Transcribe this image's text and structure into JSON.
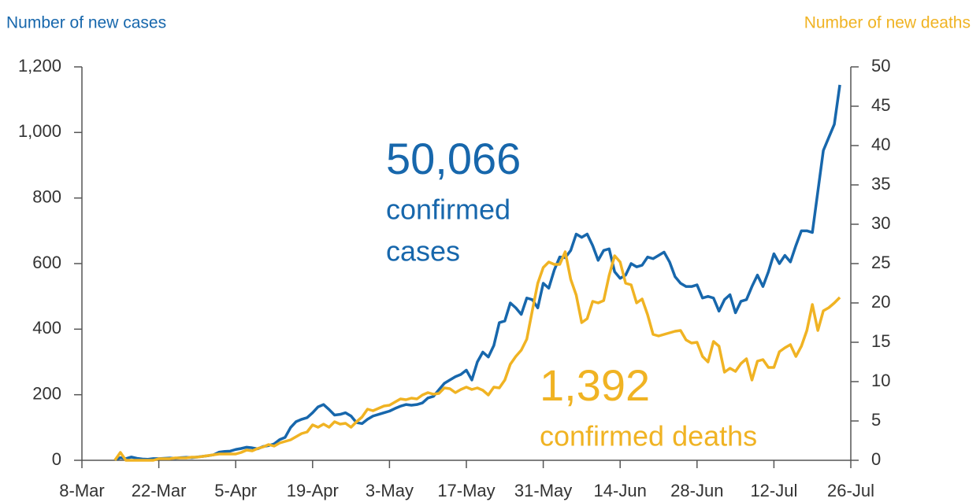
{
  "chart_data": {
    "type": "line",
    "y_label": "Number of new cases",
    "y2_label": "Number of new deaths",
    "annotations": [
      {
        "text": "50,066",
        "color": "#1767ac"
      },
      {
        "text": "confirmed",
        "color": "#1767ac"
      },
      {
        "text": "cases",
        "color": "#1767ac"
      },
      {
        "text": "1,392",
        "color": "#f0b323"
      },
      {
        "text": "confirmed deaths",
        "color": "#f0b323"
      }
    ],
    "categories": [
      "8-Mar",
      null,
      null,
      null,
      null,
      null,
      null,
      null,
      null,
      null,
      null,
      null,
      null,
      null,
      "22-Mar",
      null,
      null,
      null,
      null,
      null,
      null,
      null,
      null,
      null,
      null,
      null,
      null,
      null,
      "5-Apr",
      null,
      null,
      null,
      null,
      null,
      null,
      null,
      null,
      null,
      null,
      null,
      null,
      null,
      "19-Apr",
      null,
      null,
      null,
      null,
      null,
      null,
      null,
      null,
      null,
      null,
      null,
      null,
      null,
      "3-May",
      null,
      null,
      null,
      null,
      null,
      null,
      null,
      null,
      null,
      null,
      null,
      null,
      null,
      "17-May",
      null,
      null,
      null,
      null,
      null,
      null,
      null,
      null,
      null,
      null,
      null,
      null,
      null,
      "31-May",
      null,
      null,
      null,
      null,
      null,
      null,
      null,
      null,
      null,
      null,
      null,
      null,
      null,
      "14-Jun",
      null,
      null,
      null,
      null,
      null,
      null,
      null,
      null,
      null,
      null,
      null,
      null,
      null,
      "28-Jun",
      null,
      null,
      null,
      null,
      null,
      null,
      null,
      null,
      null,
      null,
      null,
      null,
      null,
      "12-Jul",
      null,
      null,
      null,
      null,
      null,
      null,
      null,
      null,
      null,
      null,
      null,
      null,
      null,
      "26-Jul"
    ],
    "series": [
      {
        "name": "Number of new cases",
        "color": "#1767ac",
        "axis": "y",
        "values": [
          null,
          null,
          null,
          null,
          null,
          null,
          2,
          8,
          5,
          10,
          6,
          4,
          3,
          5,
          5,
          6,
          7,
          6,
          8,
          9,
          8,
          10,
          12,
          14,
          17,
          25,
          27,
          28,
          33,
          36,
          40,
          38,
          35,
          42,
          45,
          50,
          63,
          70,
          100,
          118,
          125,
          130,
          145,
          163,
          170,
          155,
          138,
          140,
          145,
          135,
          115,
          112,
          125,
          135,
          140,
          145,
          150,
          158,
          165,
          170,
          168,
          170,
          175,
          190,
          195,
          215,
          235,
          245,
          255,
          262,
          275,
          245,
          300,
          330,
          315,
          350,
          420,
          425,
          480,
          465,
          445,
          495,
          490,
          465,
          540,
          525,
          580,
          620,
          618,
          640,
          690,
          680,
          690,
          655,
          610,
          640,
          645,
          575,
          555,
          565,
          600,
          590,
          595,
          620,
          615,
          625,
          635,
          605,
          560,
          540,
          530,
          530,
          535,
          495,
          500,
          495,
          455,
          490,
          505,
          450,
          485,
          490,
          530,
          565,
          530,
          575,
          630,
          600,
          625,
          605,
          655,
          700,
          700,
          695,
          820,
          945,
          985,
          1025,
          1145,
          null,
          null
        ]
      },
      {
        "name": "Number of new deaths",
        "color": "#f0b323",
        "axis": "y2",
        "values": [
          null,
          null,
          null,
          null,
          null,
          null,
          0,
          1,
          0,
          0,
          0,
          0,
          0,
          0,
          0.2,
          0.2,
          0.2,
          0.3,
          0.3,
          0.3,
          0.4,
          0.4,
          0.5,
          0.6,
          0.7,
          0.8,
          0.8,
          0.8,
          0.8,
          1.0,
          1.3,
          1.2,
          1.5,
          1.7,
          2.0,
          1.8,
          2.2,
          2.4,
          2.6,
          3.0,
          3.4,
          3.6,
          4.5,
          4.2,
          4.6,
          4.2,
          4.9,
          4.6,
          4.7,
          4.2,
          4.9,
          5.5,
          6.5,
          6.3,
          6.6,
          6.9,
          7.0,
          7.4,
          7.8,
          7.7,
          7.9,
          7.8,
          8.3,
          8.6,
          8.4,
          8.5,
          9.2,
          9.1,
          8.6,
          9.0,
          9.3,
          9.0,
          9.2,
          8.9,
          8.3,
          9.3,
          9.2,
          10.2,
          12.2,
          13.2,
          14.0,
          15.4,
          19.0,
          22.5,
          24.5,
          25.2,
          24.9,
          24.9,
          26.5,
          23.0,
          21.0,
          17.5,
          18.0,
          20.2,
          20.0,
          20.3,
          23.5,
          26.0,
          25.2,
          22.5,
          22.3,
          20.0,
          20.5,
          18.5,
          16.0,
          15.8,
          16.0,
          16.2,
          16.4,
          16.5,
          15.3,
          14.9,
          15.0,
          13.2,
          12.5,
          15.1,
          14.5,
          11.2,
          11.7,
          11.3,
          12.3,
          12.9,
          10.2,
          12.6,
          12.8,
          11.8,
          11.8,
          13.8,
          14.3,
          14.7,
          13.2,
          14.5,
          16.5,
          19.8,
          16.5,
          19.0,
          19.4,
          20.0,
          20.7,
          null,
          null
        ]
      }
    ],
    "ylim": [
      0,
      1200
    ],
    "yticks": [
      0,
      200,
      400,
      600,
      800,
      {
        "value": 1000,
        "label": "1,000"
      },
      {
        "value": 1200,
        "label": "1,200"
      }
    ],
    "y2lim": [
      0,
      50
    ],
    "y2ticks": [
      0,
      5,
      10,
      15,
      20,
      25,
      30,
      35,
      40,
      45,
      50
    ],
    "grid": false
  }
}
